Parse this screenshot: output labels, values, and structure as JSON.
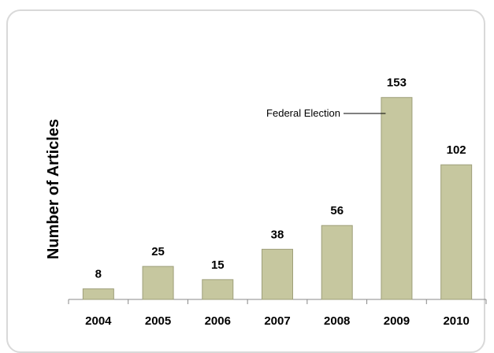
{
  "chart_data": {
    "type": "bar",
    "title": "",
    "xlabel": "",
    "ylabel": "Number of Articles",
    "categories": [
      "2004",
      "2005",
      "2006",
      "2007",
      "2008",
      "2009",
      "2010"
    ],
    "values": [
      8,
      25,
      15,
      38,
      56,
      153,
      102
    ],
    "ylim": [
      0,
      160
    ],
    "grid": false,
    "legend": "none",
    "data_labels": true,
    "annotations": [
      {
        "text": "Federal Election",
        "category": "2009"
      }
    ],
    "colors": {
      "bar_fill": "#c6c79f",
      "bar_stroke": "#9e9f7a",
      "axis": "#888888",
      "frame": "#d9d9d9"
    }
  }
}
